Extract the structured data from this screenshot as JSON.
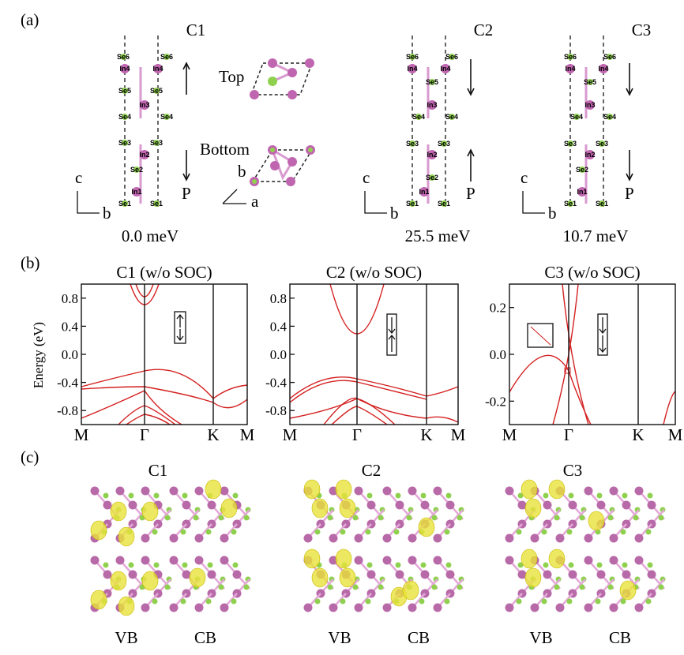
{
  "panel_a": {
    "label": "(a)",
    "top": "Top",
    "bottom": "Bottom",
    "axis_a": "a",
    "axis_b": "b",
    "axis_c": "c",
    "polarization": "P",
    "structures": [
      {
        "name": "C1",
        "energy": "0.0 meV",
        "atoms": [
          "Se6",
          "Se6",
          "In4",
          "In4",
          "Se5",
          "Se5",
          "In3",
          "Se4",
          "Se4",
          "Se3",
          "Se3",
          "In2",
          "Se2",
          "In1",
          "Se1",
          "Se1"
        ]
      },
      {
        "name": "C2",
        "energy": "25.5 meV",
        "atoms": [
          "Se6",
          "Se6",
          "In4",
          "In4",
          "Se5",
          "In3",
          "Se4",
          "Se4",
          "Se3",
          "Se3",
          "In2",
          "Se2",
          "In1",
          "Se1",
          "Se1"
        ]
      },
      {
        "name": "C3",
        "energy": "10.7 meV",
        "atoms": [
          "Se6",
          "Se6",
          "In4",
          "In4",
          "Se5",
          "In3",
          "Se4",
          "Se4",
          "Se3",
          "Se3",
          "In2",
          "Se2",
          "In1",
          "Se1",
          "Se1"
        ]
      }
    ]
  },
  "panel_b": {
    "label": "(b)",
    "ylabel": "Energy (eV)",
    "plots": [
      {
        "title": "C1 (w/o SOC)",
        "ylim": [
          -1,
          1
        ],
        "yticks": [
          0.8,
          0.4,
          {
            "value": 0,
            "label": "0.0"
          },
          -0.4,
          -0.8
        ],
        "kpoints": [
          "M",
          "Γ",
          "K",
          "M"
        ]
      },
      {
        "title": "C2 (w/o SOC)",
        "ylim": [
          -1,
          1
        ],
        "yticks": [
          0.8,
          0.4,
          {
            "value": 0,
            "label": "0.0"
          },
          -0.4,
          -0.8
        ],
        "kpoints": [
          "M",
          "Γ",
          "K",
          "M"
        ]
      },
      {
        "title": "C3 (w/o SOC)",
        "ylim": [
          -0.3,
          0.3
        ],
        "yticks": [
          0.2,
          {
            "value": 0,
            "label": "0.0"
          },
          -0.2
        ],
        "kpoints": [
          "M",
          "Γ",
          "K",
          "M"
        ]
      }
    ]
  },
  "panel_c": {
    "label": "(c)",
    "columns": [
      {
        "name": "C1",
        "vb": "VB",
        "cb": "CB"
      },
      {
        "name": "C2",
        "vb": "VB",
        "cb": "CB"
      },
      {
        "name": "C3",
        "vb": "VB",
        "cb": "CB"
      }
    ]
  }
}
